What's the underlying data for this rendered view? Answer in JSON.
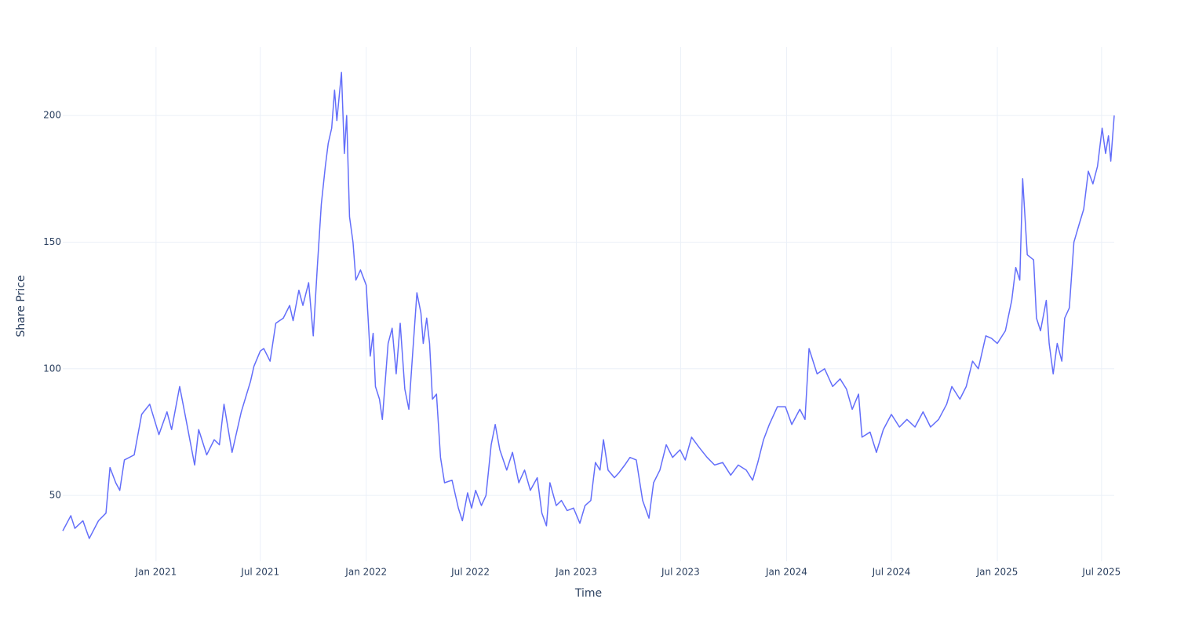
{
  "chart_data": {
    "type": "line",
    "xlabel": "Time",
    "ylabel": "Share Price",
    "x": [
      "2020-07-23",
      "2020-08-06",
      "2020-08-13",
      "2020-08-27",
      "2020-09-07",
      "2020-09-23",
      "2020-10-06",
      "2020-10-13",
      "2020-10-23",
      "2020-10-30",
      "2020-11-07",
      "2020-11-24",
      "2020-12-07",
      "2020-12-21",
      "2021-01-06",
      "2021-01-20",
      "2021-01-28",
      "2021-02-11",
      "2021-02-22",
      "2021-03-09",
      "2021-03-16",
      "2021-03-30",
      "2021-04-12",
      "2021-04-21",
      "2021-04-29",
      "2021-05-13",
      "2021-05-29",
      "2021-06-14",
      "2021-06-20",
      "2021-07-01",
      "2021-07-07",
      "2021-07-18",
      "2021-07-28",
      "2021-08-10",
      "2021-08-21",
      "2021-08-27",
      "2021-09-06",
      "2021-09-13",
      "2021-09-23",
      "2021-10-01",
      "2021-10-08",
      "2021-10-15",
      "2021-10-22",
      "2021-10-27",
      "2021-11-02",
      "2021-11-07",
      "2021-11-11",
      "2021-11-19",
      "2021-11-24",
      "2021-11-28",
      "2021-12-03",
      "2021-12-09",
      "2021-12-14",
      "2021-12-22",
      "2022-01-01",
      "2022-01-08",
      "2022-01-13",
      "2022-01-17",
      "2022-01-24",
      "2022-01-29",
      "2022-02-08",
      "2022-02-15",
      "2022-02-22",
      "2022-03-01",
      "2022-03-09",
      "2022-03-16",
      "2022-03-22",
      "2022-03-30",
      "2022-04-06",
      "2022-04-10",
      "2022-04-16",
      "2022-04-21",
      "2022-04-26",
      "2022-05-03",
      "2022-05-10",
      "2022-05-17",
      "2022-05-30",
      "2022-06-10",
      "2022-06-17",
      "2022-06-26",
      "2022-07-03",
      "2022-07-10",
      "2022-07-20",
      "2022-07-28",
      "2022-08-06",
      "2022-08-13",
      "2022-08-21",
      "2022-09-02",
      "2022-09-12",
      "2022-09-23",
      "2022-10-03",
      "2022-10-13",
      "2022-10-25",
      "2022-11-02",
      "2022-11-10",
      "2022-11-16",
      "2022-11-27",
      "2022-12-06",
      "2022-12-16",
      "2022-12-27",
      "2023-01-07",
      "2023-01-16",
      "2023-01-26",
      "2023-02-03",
      "2023-02-11",
      "2023-02-17",
      "2023-02-25",
      "2023-03-08",
      "2023-03-16",
      "2023-03-26",
      "2023-04-04",
      "2023-04-15",
      "2023-04-26",
      "2023-05-07",
      "2023-05-15",
      "2023-05-26",
      "2023-06-06",
      "2023-06-17",
      "2023-06-30",
      "2023-07-09",
      "2023-07-20",
      "2023-08-02",
      "2023-08-16",
      "2023-08-29",
      "2023-09-12",
      "2023-09-26",
      "2023-10-09",
      "2023-10-23",
      "2023-11-03",
      "2023-11-12",
      "2023-11-22",
      "2023-12-02",
      "2023-12-16",
      "2023-12-30",
      "2024-01-10",
      "2024-01-24",
      "2024-02-02",
      "2024-02-09",
      "2024-02-23",
      "2024-03-07",
      "2024-03-21",
      "2024-04-03",
      "2024-04-14",
      "2024-04-24",
      "2024-05-05",
      "2024-05-11",
      "2024-05-25",
      "2024-06-05",
      "2024-06-17",
      "2024-07-01",
      "2024-07-15",
      "2024-07-28",
      "2024-08-11",
      "2024-08-25",
      "2024-09-07",
      "2024-09-21",
      "2024-10-05",
      "2024-10-14",
      "2024-10-28",
      "2024-11-08",
      "2024-11-19",
      "2024-11-29",
      "2024-12-12",
      "2024-12-22",
      "2025-01-01",
      "2025-01-15",
      "2025-01-26",
      "2025-02-02",
      "2025-02-09",
      "2025-02-14",
      "2025-02-22",
      "2025-03-05",
      "2025-03-10",
      "2025-03-17",
      "2025-03-27",
      "2025-04-01",
      "2025-04-08",
      "2025-04-15",
      "2025-04-23",
      "2025-04-28",
      "2025-05-06",
      "2025-05-14",
      "2025-05-23",
      "2025-05-31",
      "2025-06-08",
      "2025-06-16",
      "2025-06-24",
      "2025-07-02",
      "2025-07-08",
      "2025-07-13",
      "2025-07-17",
      "2025-07-23"
    ],
    "series": [
      {
        "color": "#636efa",
        "values": [
          36,
          42,
          37,
          40,
          33,
          40,
          43,
          61,
          55,
          52,
          64,
          66,
          82,
          86,
          74,
          83,
          76,
          93,
          80,
          62,
          76,
          66,
          72,
          70,
          86,
          67,
          83,
          95,
          101,
          107,
          108,
          103,
          118,
          120,
          125,
          119,
          131,
          125,
          134,
          113,
          140,
          165,
          180,
          189,
          195,
          210,
          198,
          217,
          185,
          200,
          160,
          150,
          135,
          139,
          133,
          105,
          114,
          93,
          88,
          80,
          110,
          116,
          98,
          118,
          92,
          84,
          104,
          130,
          122,
          110,
          120,
          110,
          88,
          90,
          65,
          55,
          56,
          45,
          40,
          51,
          45,
          52,
          46,
          50,
          70,
          78,
          68,
          60,
          67,
          55,
          60,
          52,
          57,
          43,
          38,
          55,
          46,
          48,
          44,
          45,
          39,
          46,
          48,
          63,
          60,
          72,
          60,
          57,
          59,
          62,
          65,
          64,
          48,
          41,
          55,
          60,
          70,
          65,
          68,
          64,
          73,
          69,
          65,
          62,
          63,
          58,
          62,
          60,
          56,
          63,
          72,
          78,
          85,
          85,
          78,
          84,
          80,
          108,
          98,
          100,
          93,
          96,
          92,
          84,
          90,
          73,
          75,
          67,
          76,
          82,
          77,
          80,
          77,
          83,
          77,
          80,
          86,
          93,
          88,
          93,
          103,
          100,
          113,
          112,
          110,
          115,
          127,
          140,
          135,
          175,
          145,
          143,
          120,
          115,
          127,
          110,
          98,
          110,
          103,
          120,
          124,
          150,
          157,
          163,
          178,
          173,
          180,
          195,
          185,
          192,
          182,
          200
        ]
      }
    ],
    "xlim": [
      "2020-07-23",
      "2025-07-23"
    ],
    "xticks": [
      {
        "value": "2021-01-01",
        "label": "Jan 2021"
      },
      {
        "value": "2021-07-01",
        "label": "Jul 2021"
      },
      {
        "value": "2022-01-01",
        "label": "Jan 2022"
      },
      {
        "value": "2022-07-01",
        "label": "Jul 2022"
      },
      {
        "value": "2023-01-01",
        "label": "Jan 2023"
      },
      {
        "value": "2023-07-01",
        "label": "Jul 2023"
      },
      {
        "value": "2024-01-01",
        "label": "Jan 2024"
      },
      {
        "value": "2024-07-01",
        "label": "Jul 2024"
      },
      {
        "value": "2025-01-01",
        "label": "Jan 2025"
      },
      {
        "value": "2025-07-01",
        "label": "Jul 2025"
      }
    ],
    "ylim": [
      24,
      227
    ],
    "yticks": [
      50,
      100,
      150,
      200
    ],
    "grid": true
  }
}
